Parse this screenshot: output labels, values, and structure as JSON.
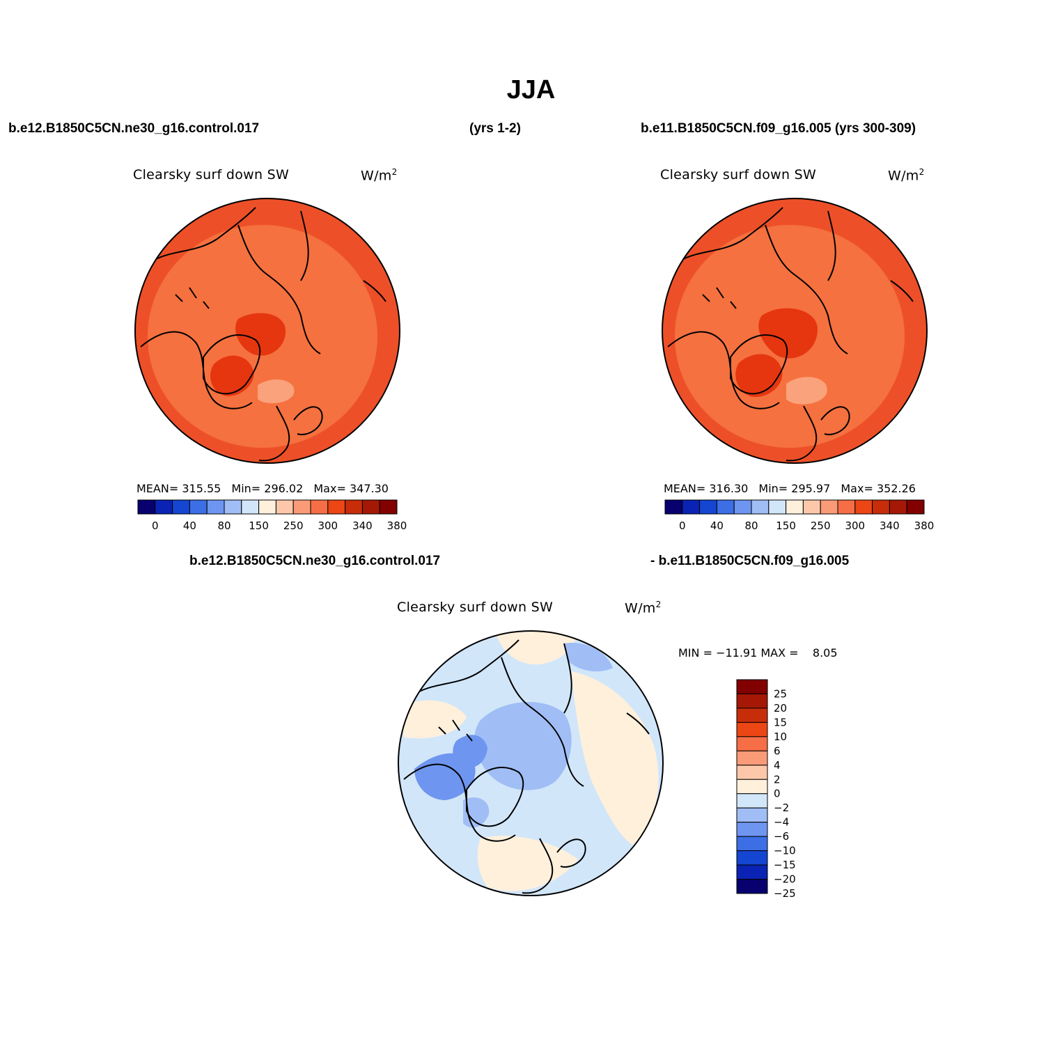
{
  "figure_title": "JJA",
  "headers": {
    "case1": "b.e12.B1850C5CN.ne30_g16.control.017",
    "case1_years": "(yrs 1-2)",
    "case2": "b.e11.B1850C5CN.f09_g16.005 (yrs 300-309)",
    "diff_left": "b.e12.B1850C5CN.ne30_g16.control.017",
    "diff_right": "- b.e11.B1850C5CN.f09_g16.005"
  },
  "panels": [
    {
      "title": "Clearsky surf down SW",
      "units_base": "W/m",
      "units_sup": "2",
      "stats": {
        "mean_label": "MEAN=",
        "mean": "315.55",
        "min_label": "Min=",
        "min": "296.02",
        "max_label": "Max=",
        "max": "347.30"
      }
    },
    {
      "title": "Clearsky surf down SW",
      "units_base": "W/m",
      "units_sup": "2",
      "stats": {
        "mean_label": "MEAN=",
        "mean": "316.30",
        "min_label": "Min=",
        "min": "295.97",
        "max_label": "Max=",
        "max": "352.26"
      }
    },
    {
      "title": "Clearsky surf down SW",
      "units_base": "W/m",
      "units_sup": "2",
      "stats_text": "MIN = −11.91 MAX =    8.05"
    }
  ],
  "colorbar_main": {
    "colors": [
      "#08006e",
      "#0a23b4",
      "#1446d2",
      "#3c6ee6",
      "#6e96f0",
      "#a0bef5",
      "#d2e6fa",
      "#fff0dc",
      "#fdc8aa",
      "#fa9b78",
      "#f56e46",
      "#eb4614",
      "#c82d0a",
      "#a51805",
      "#820000"
    ],
    "tick_labels": [
      "0",
      "40",
      "80",
      "150",
      "250",
      "300",
      "340",
      "380"
    ]
  },
  "colorbar_diff": {
    "colors_top_to_bottom": [
      "#820000",
      "#a51805",
      "#c82d0a",
      "#eb4614",
      "#f56e46",
      "#fa9b78",
      "#fdc8aa",
      "#fff0dc",
      "#d2e6fa",
      "#a0bef5",
      "#6e96f0",
      "#3c6ee6",
      "#1446d2",
      "#0a23b4",
      "#08006e"
    ],
    "tick_labels": [
      "25",
      "20",
      "15",
      "10",
      "6",
      "4",
      "2",
      "0",
      "−2",
      "−4",
      "−6",
      "−10",
      "−15",
      "−20",
      "−25"
    ]
  },
  "map_colors": {
    "field_base": "#f5713f",
    "field_outer": "#ed5028",
    "field_high": "#e53610",
    "field_low": "#faa27c",
    "diff_base": "#d2e6fa",
    "diff_pos": "#fff0dc",
    "diff_neg1": "#a0bef5",
    "diff_neg2": "#6e96f0"
  }
}
